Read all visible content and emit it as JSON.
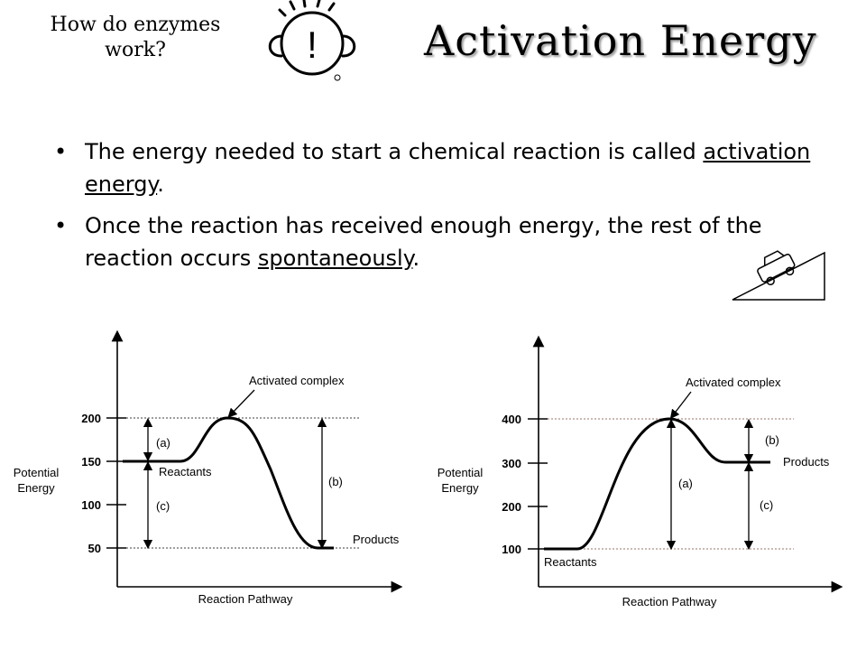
{
  "header": {
    "corner_title_line1": "How do enzymes",
    "corner_title_line2": "work?",
    "title": "Activation Energy",
    "mascot_icon": "exclamation-face-icon",
    "mascot_mark": "!",
    "ramp_icon": "car-on-ramp-icon"
  },
  "bullets": [
    {
      "before": "The energy needed to start a chemical reaction is called ",
      "term": "activation energy",
      "after": "."
    },
    {
      "before": "Once the reaction has received enough energy, the rest of the reaction occurs ",
      "term": "spontaneously",
      "after": "."
    }
  ],
  "diagrams": [
    {
      "xlabel": "Reaction Pathway",
      "ylabel_line1": "Potential",
      "ylabel_line2": "Energy",
      "yticks": [
        "50",
        "100",
        "150",
        "200"
      ],
      "labels": {
        "complex": "Activated complex",
        "reactants": "Reactants",
        "products": "Products",
        "a": "(a)",
        "b": "(b)",
        "c": "(c)"
      }
    },
    {
      "xlabel": "Reaction Pathway",
      "ylabel_line1": "Potential",
      "ylabel_line2": "Energy",
      "yticks": [
        "100",
        "200",
        "300",
        "400"
      ],
      "labels": {
        "complex": "Activated complex",
        "reactants": "Reactants",
        "products": "Products",
        "a": "(a)",
        "b": "(b)",
        "c": "(c)"
      }
    }
  ]
}
